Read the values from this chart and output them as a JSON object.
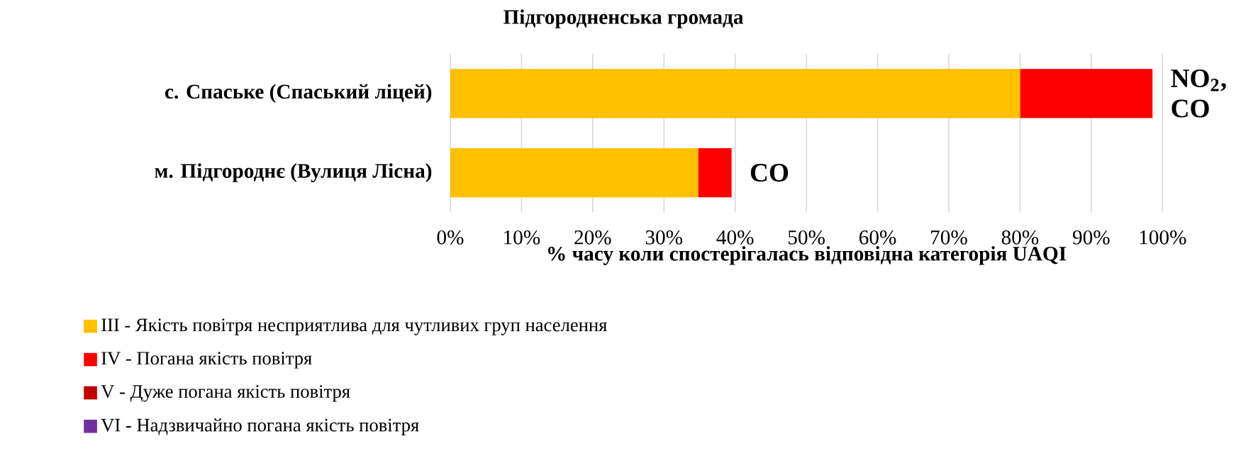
{
  "chart_data": {
    "type": "bar",
    "orientation": "horizontal",
    "stacked": true,
    "title": "Підгородненська громада",
    "xlabel": "% часу коли спостерігалась відповідна категорія UAQI",
    "categories": [
      "с. Спаське (Спаський ліцей)",
      "м. Підгороднє (Вулиця Лісна)"
    ],
    "series": [
      {
        "name": "III - Якість повітря  несприятлива  для чутливих  груп  населення",
        "color": "#ffc000",
        "values": [
          80.0,
          34.8
        ]
      },
      {
        "name": "IV - Погана  якість повітря",
        "color": "#ff0000",
        "values": [
          18.6,
          4.7
        ]
      },
      {
        "name": "V - Дуже погана  якість повітря",
        "color": "#c00000",
        "values": [
          0,
          0
        ]
      },
      {
        "name": "VI - Надзвичайно  погана  якість повітря",
        "color": "#7030a0",
        "values": [
          0,
          0
        ]
      }
    ],
    "xlim": [
      0,
      100
    ],
    "xticks": [
      {
        "value": 0,
        "label": "0%"
      },
      {
        "value": 10,
        "label": "10%"
      },
      {
        "value": 20,
        "label": "20%"
      },
      {
        "value": 30,
        "label": "30%"
      },
      {
        "value": 40,
        "label": "40%"
      },
      {
        "value": 50,
        "label": "50%"
      },
      {
        "value": 60,
        "label": "60%"
      },
      {
        "value": 70,
        "label": "70%"
      },
      {
        "value": 80,
        "label": "80%"
      },
      {
        "value": 90,
        "label": "90%"
      },
      {
        "value": 100,
        "label": "100%"
      }
    ],
    "grid": "x",
    "legend": "bottom",
    "annotations": [
      {
        "text": "NO$_{2}$, CO",
        "x": 98.6,
        "y": "с. Спаське (Спаський ліцей)"
      },
      {
        "text": "CO",
        "x": 39.5,
        "y": "м. Підгороднє (Вулиця Лісна)"
      }
    ]
  }
}
